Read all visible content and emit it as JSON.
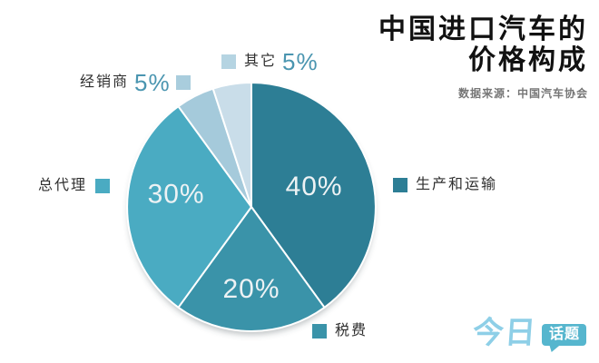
{
  "header": {
    "title_line1": "中国进口汽车的",
    "title_line2": "价格构成",
    "source": "数据来源：中国汽车协会"
  },
  "chart_data": {
    "type": "pie",
    "title": "中国进口汽车的价格构成",
    "source": "数据来源：中国汽车协会",
    "unit": "percent",
    "direction": "clockwise",
    "start_angle_deg": 0,
    "legend_position": "around",
    "series": [
      {
        "name": "生产和运输",
        "value": 40,
        "display": "40%",
        "color": "#2d7e95",
        "swatch": "#2d7e95",
        "label_inside": true
      },
      {
        "name": "税费",
        "value": 20,
        "display": "20%",
        "color": "#3a93a9",
        "swatch": "#3a93a9",
        "label_inside": true
      },
      {
        "name": "总代理",
        "value": 30,
        "display": "30%",
        "color": "#4aabc2",
        "swatch": "#4aabc2",
        "label_inside": true
      },
      {
        "name": "经销商",
        "value": 5,
        "display": "5%",
        "color": "#a5cadb",
        "swatch": "#a9cddd",
        "label_inside": false
      },
      {
        "name": "其它",
        "value": 5,
        "display": "5%",
        "color": "#c9dde9",
        "swatch": "#b5d4e2",
        "label_inside": false
      }
    ]
  },
  "palette": {
    "pct_accent": "#4a95b0",
    "slice_label_text": "#edf2f4",
    "title_text": "#111111",
    "source_text": "#767676",
    "logo_script_blue": "#8ecfe7",
    "logo_bubble_teal": "#56b6ce"
  },
  "logo": {
    "part1": "今日",
    "part2": "话题"
  }
}
